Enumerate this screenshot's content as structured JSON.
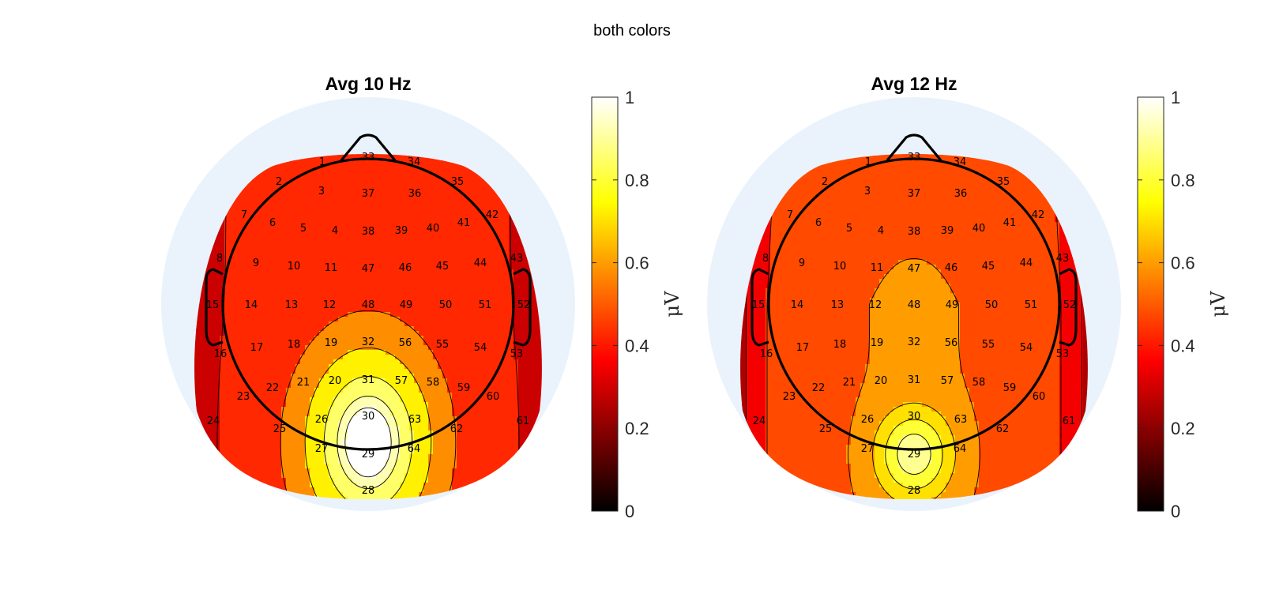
{
  "figure": {
    "title": "both colors"
  },
  "colors": {
    "background_disk": "#eaf3fc",
    "head_outline": "#000000",
    "colormap": "hot",
    "colormap_stops": [
      "#000000",
      "#ff0000",
      "#ffff00",
      "#ffffff"
    ]
  },
  "chart_data": [
    {
      "type": "heatmap",
      "subtype": "topographic-scalp-map",
      "title": "Avg 10 Hz",
      "colorbar": {
        "label": "μV",
        "clim": [
          0,
          1
        ],
        "ticks": [
          "0",
          "0.2",
          "0.4",
          "0.6",
          "0.8",
          "1"
        ]
      },
      "peak": {
        "value": 1.0,
        "electrode": "29"
      },
      "contour_levels": [
        0.35,
        0.5,
        0.65,
        0.8,
        0.9,
        0.95
      ],
      "electrodes": [
        "1",
        "2",
        "3",
        "4",
        "5",
        "6",
        "7",
        "8",
        "9",
        "10",
        "11",
        "12",
        "13",
        "14",
        "15",
        "16",
        "17",
        "18",
        "19",
        "20",
        "21",
        "22",
        "23",
        "24",
        "25",
        "26",
        "27",
        "28",
        "29",
        "30",
        "31",
        "32",
        "33",
        "34",
        "35",
        "36",
        "37",
        "38",
        "39",
        "40",
        "41",
        "42",
        "43",
        "44",
        "45",
        "46",
        "47",
        "48",
        "49",
        "50",
        "51",
        "52",
        "53",
        "54",
        "55",
        "56",
        "57",
        "58",
        "59",
        "60",
        "61",
        "62",
        "63",
        "64"
      ]
    },
    {
      "type": "heatmap",
      "subtype": "topographic-scalp-map",
      "title": "Avg 12 Hz",
      "colorbar": {
        "label": "μV",
        "clim": [
          0,
          1
        ],
        "ticks": [
          "0",
          "0.2",
          "0.4",
          "0.6",
          "0.8",
          "1"
        ]
      },
      "peak": {
        "value": 0.9,
        "electrode": "29"
      },
      "contour_levels": [
        0.2,
        0.3,
        0.4,
        0.55,
        0.65,
        0.75,
        0.85
      ],
      "electrodes": [
        "1",
        "2",
        "3",
        "4",
        "5",
        "6",
        "7",
        "8",
        "9",
        "10",
        "11",
        "12",
        "13",
        "14",
        "15",
        "16",
        "17",
        "18",
        "19",
        "20",
        "21",
        "22",
        "23",
        "24",
        "25",
        "26",
        "27",
        "28",
        "29",
        "30",
        "31",
        "32",
        "33",
        "34",
        "35",
        "36",
        "37",
        "38",
        "39",
        "40",
        "41",
        "42",
        "43",
        "44",
        "45",
        "46",
        "47",
        "48",
        "49",
        "50",
        "51",
        "52",
        "53",
        "54",
        "55",
        "56",
        "57",
        "58",
        "59",
        "60",
        "61",
        "62",
        "63",
        "64"
      ]
    }
  ]
}
